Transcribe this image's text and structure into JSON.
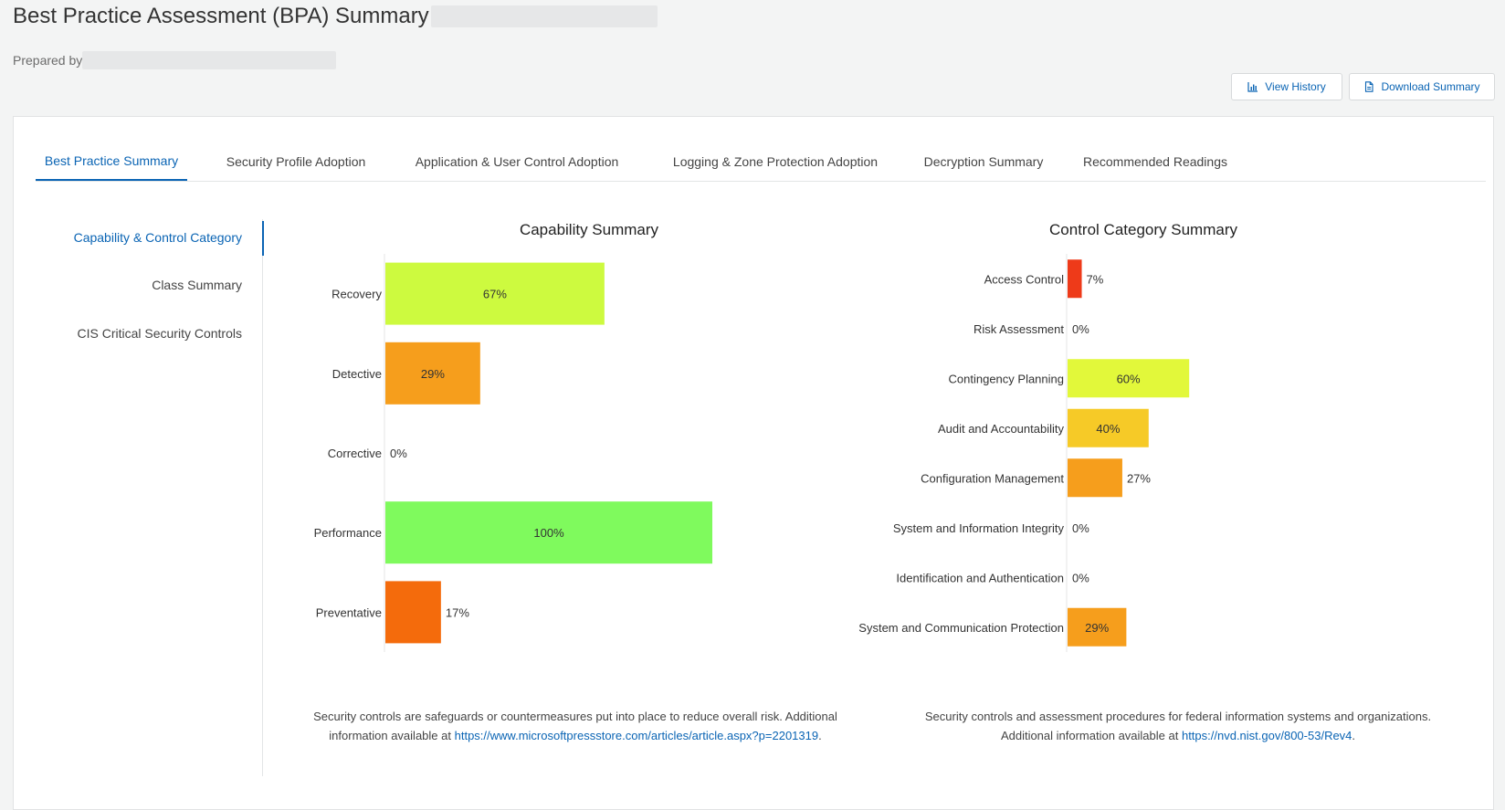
{
  "header": {
    "title": "Best Practice Assessment (BPA) Summary",
    "prepared_by_label": "Prepared by"
  },
  "toolbar": {
    "view_history_label": "View History",
    "download_summary_label": "Download Summary"
  },
  "tabs": [
    {
      "label": "Best Practice Summary",
      "active": true
    },
    {
      "label": "Security Profile Adoption"
    },
    {
      "label": "Application & User Control Adoption"
    },
    {
      "label": "Logging & Zone Protection Adoption"
    },
    {
      "label": "Decryption Summary"
    },
    {
      "label": "Recommended Readings"
    }
  ],
  "side_nav": {
    "items": [
      {
        "label": "Capability & Control Category",
        "active": true
      },
      {
        "label": "Class Summary"
      },
      {
        "label": "CIS Critical Security Controls"
      }
    ]
  },
  "colors": {
    "accent": "#0a64b4",
    "red": "#ee3a19",
    "orange_red": "#f46b0c",
    "orange": "#f69e1c",
    "yellow_orange": "#f6ca27",
    "yellow_green": "#e2f83a",
    "lime": "#cdfa3f",
    "green": "#7ffa5d"
  },
  "chart_data": [
    {
      "type": "bar",
      "orientation": "horizontal",
      "title": "Capability Summary",
      "categories": [
        "Recovery",
        "Detective",
        "Corrective",
        "Performance",
        "Preventative"
      ],
      "values": [
        67,
        29,
        0,
        100,
        17
      ],
      "labels": [
        "67%",
        "29%",
        "0%",
        "100%",
        "17%"
      ],
      "colors": [
        "#cdfa3f",
        "#f69e1c",
        "#cccccc",
        "#7ffa5d",
        "#f46b0c"
      ],
      "xlim": [
        0,
        100
      ],
      "caption_text": "Security controls are safeguards or countermeasures put into place to reduce overall risk. Additional information available at",
      "caption_link": "https://www.microsoftpressstore.com/articles/article.aspx?p=2201319",
      "caption_end": "."
    },
    {
      "type": "bar",
      "orientation": "horizontal",
      "title": "Control Category Summary",
      "categories": [
        "Access Control",
        "Risk Assessment",
        "Contingency Planning",
        "Audit and Accountability",
        "Configuration Management",
        "System and Information Integrity",
        "Identification and Authentication",
        "System and Communication Protection"
      ],
      "values": [
        7,
        0,
        60,
        40,
        27,
        0,
        0,
        29
      ],
      "labels": [
        "7%",
        "0%",
        "60%",
        "40%",
        "27%",
        "0%",
        "0%",
        "29%"
      ],
      "colors": [
        "#ee3a19",
        "#cccccc",
        "#e2f83a",
        "#f6ca27",
        "#f69e1c",
        "#cccccc",
        "#cccccc",
        "#f69e1c"
      ],
      "xlim": [
        0,
        100
      ],
      "caption_text": "Security controls and assessment procedures for federal information systems and organizations. Additional information available at",
      "caption_link": "https://nvd.nist.gov/800-53/Rev4",
      "caption_end": "."
    }
  ]
}
